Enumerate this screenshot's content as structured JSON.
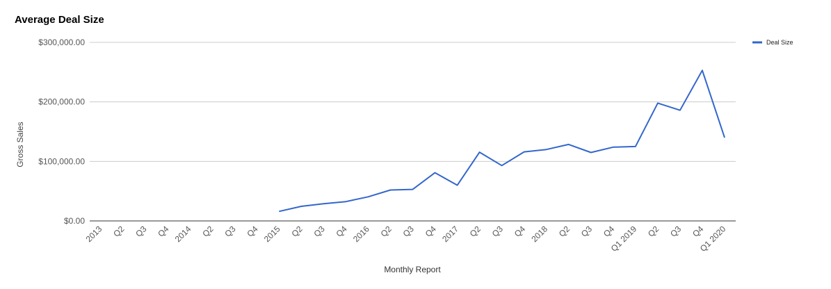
{
  "chart_data": {
    "type": "line",
    "title": "Average Deal Size",
    "xlabel": "Monthly Report",
    "ylabel": "Gross Sales",
    "ylim": [
      0,
      300000
    ],
    "yticks": [
      {
        "value": 0,
        "label": "$0.00"
      },
      {
        "value": 100000,
        "label": "$100,000.00"
      },
      {
        "value": 200000,
        "label": "$200,000.00"
      },
      {
        "value": 300000,
        "label": "$300,000.00"
      }
    ],
    "categories": [
      "2013",
      "Q2",
      "Q3",
      "Q4",
      "2014",
      "Q2",
      "Q3",
      "Q4",
      "2015",
      "Q2",
      "Q3",
      "Q4",
      "2016",
      "Q2",
      "Q3",
      "Q4",
      "2017",
      "Q2",
      "Q3",
      "Q4",
      "2018",
      "Q2",
      "Q3",
      "Q4",
      "Q1 2019",
      "Q2",
      "Q3",
      "Q4",
      "Q1 2020"
    ],
    "grid": true,
    "legend_position": "top-right",
    "series": [
      {
        "name": "Deal Size",
        "color": "#3366cc",
        "values": [
          null,
          null,
          null,
          null,
          null,
          null,
          null,
          null,
          16000,
          24500,
          29000,
          32500,
          40500,
          52000,
          53000,
          81000,
          60000,
          115500,
          93000,
          116000,
          120000,
          128500,
          115000,
          124000,
          125000,
          198000,
          186000,
          253000,
          140000
        ]
      }
    ]
  }
}
